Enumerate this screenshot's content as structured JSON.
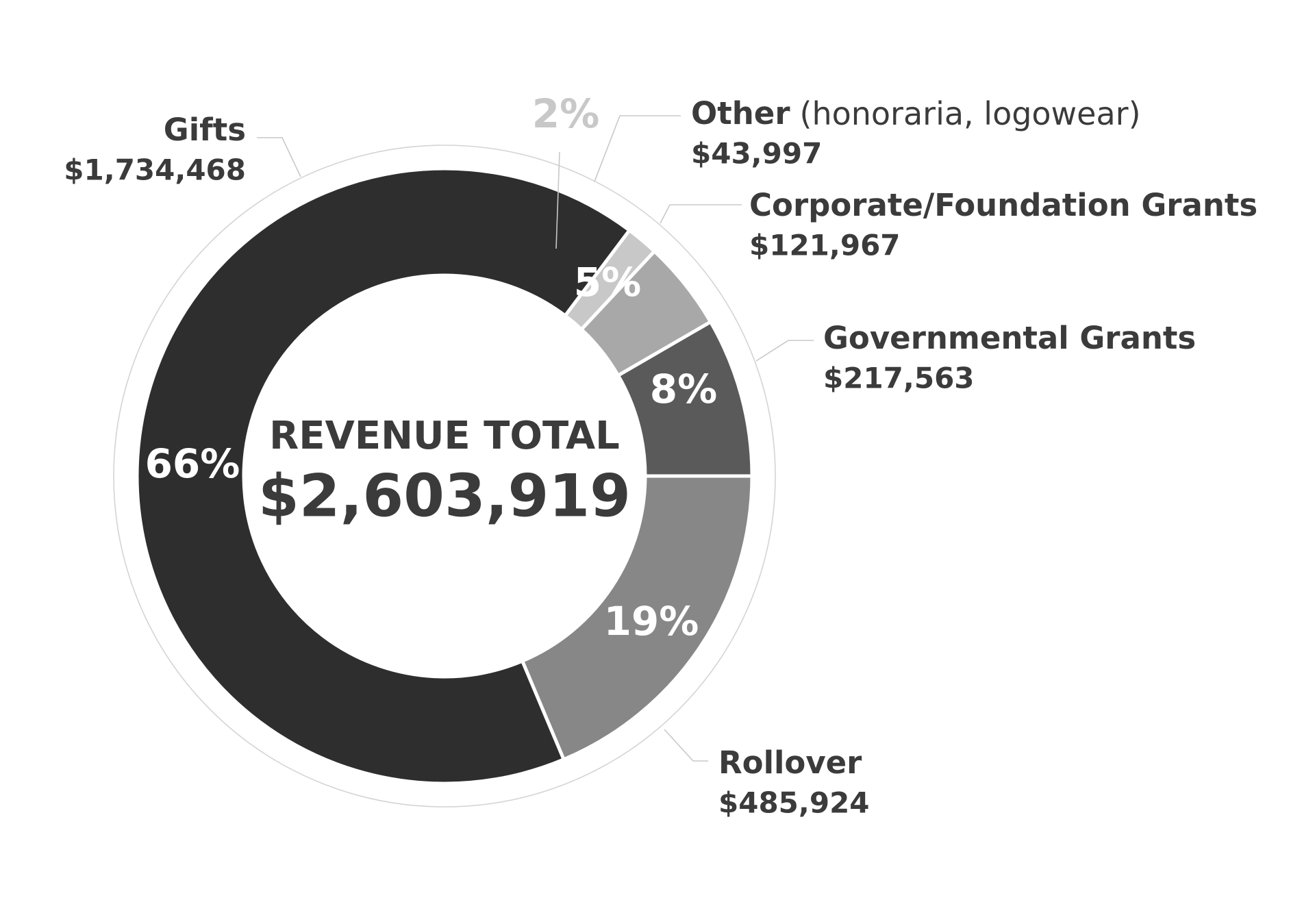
{
  "chart_data": {
    "type": "donut",
    "center_title": "REVENUE TOTAL",
    "center_value": "$2,603,919",
    "categories": [
      "Rollover",
      "Gifts",
      "Other",
      "Corporate/Foundation Grants",
      "Governmental Grants"
    ],
    "category_note": {
      "index": 2,
      "text": "(honoraria, logowear)"
    },
    "values": [
      485924,
      1734468,
      43997,
      121967,
      217563
    ],
    "value_labels": [
      "$485,924",
      "$1,734,468",
      "$43,997",
      "$121,967",
      "$217,563"
    ],
    "share_labels": [
      "19%",
      "66%",
      "2%",
      "5%",
      "8%"
    ],
    "colors": [
      "#878787",
      "#2e2e2e",
      "#c8c8c8",
      "#a8a8a8",
      "#5a5a5a"
    ]
  }
}
